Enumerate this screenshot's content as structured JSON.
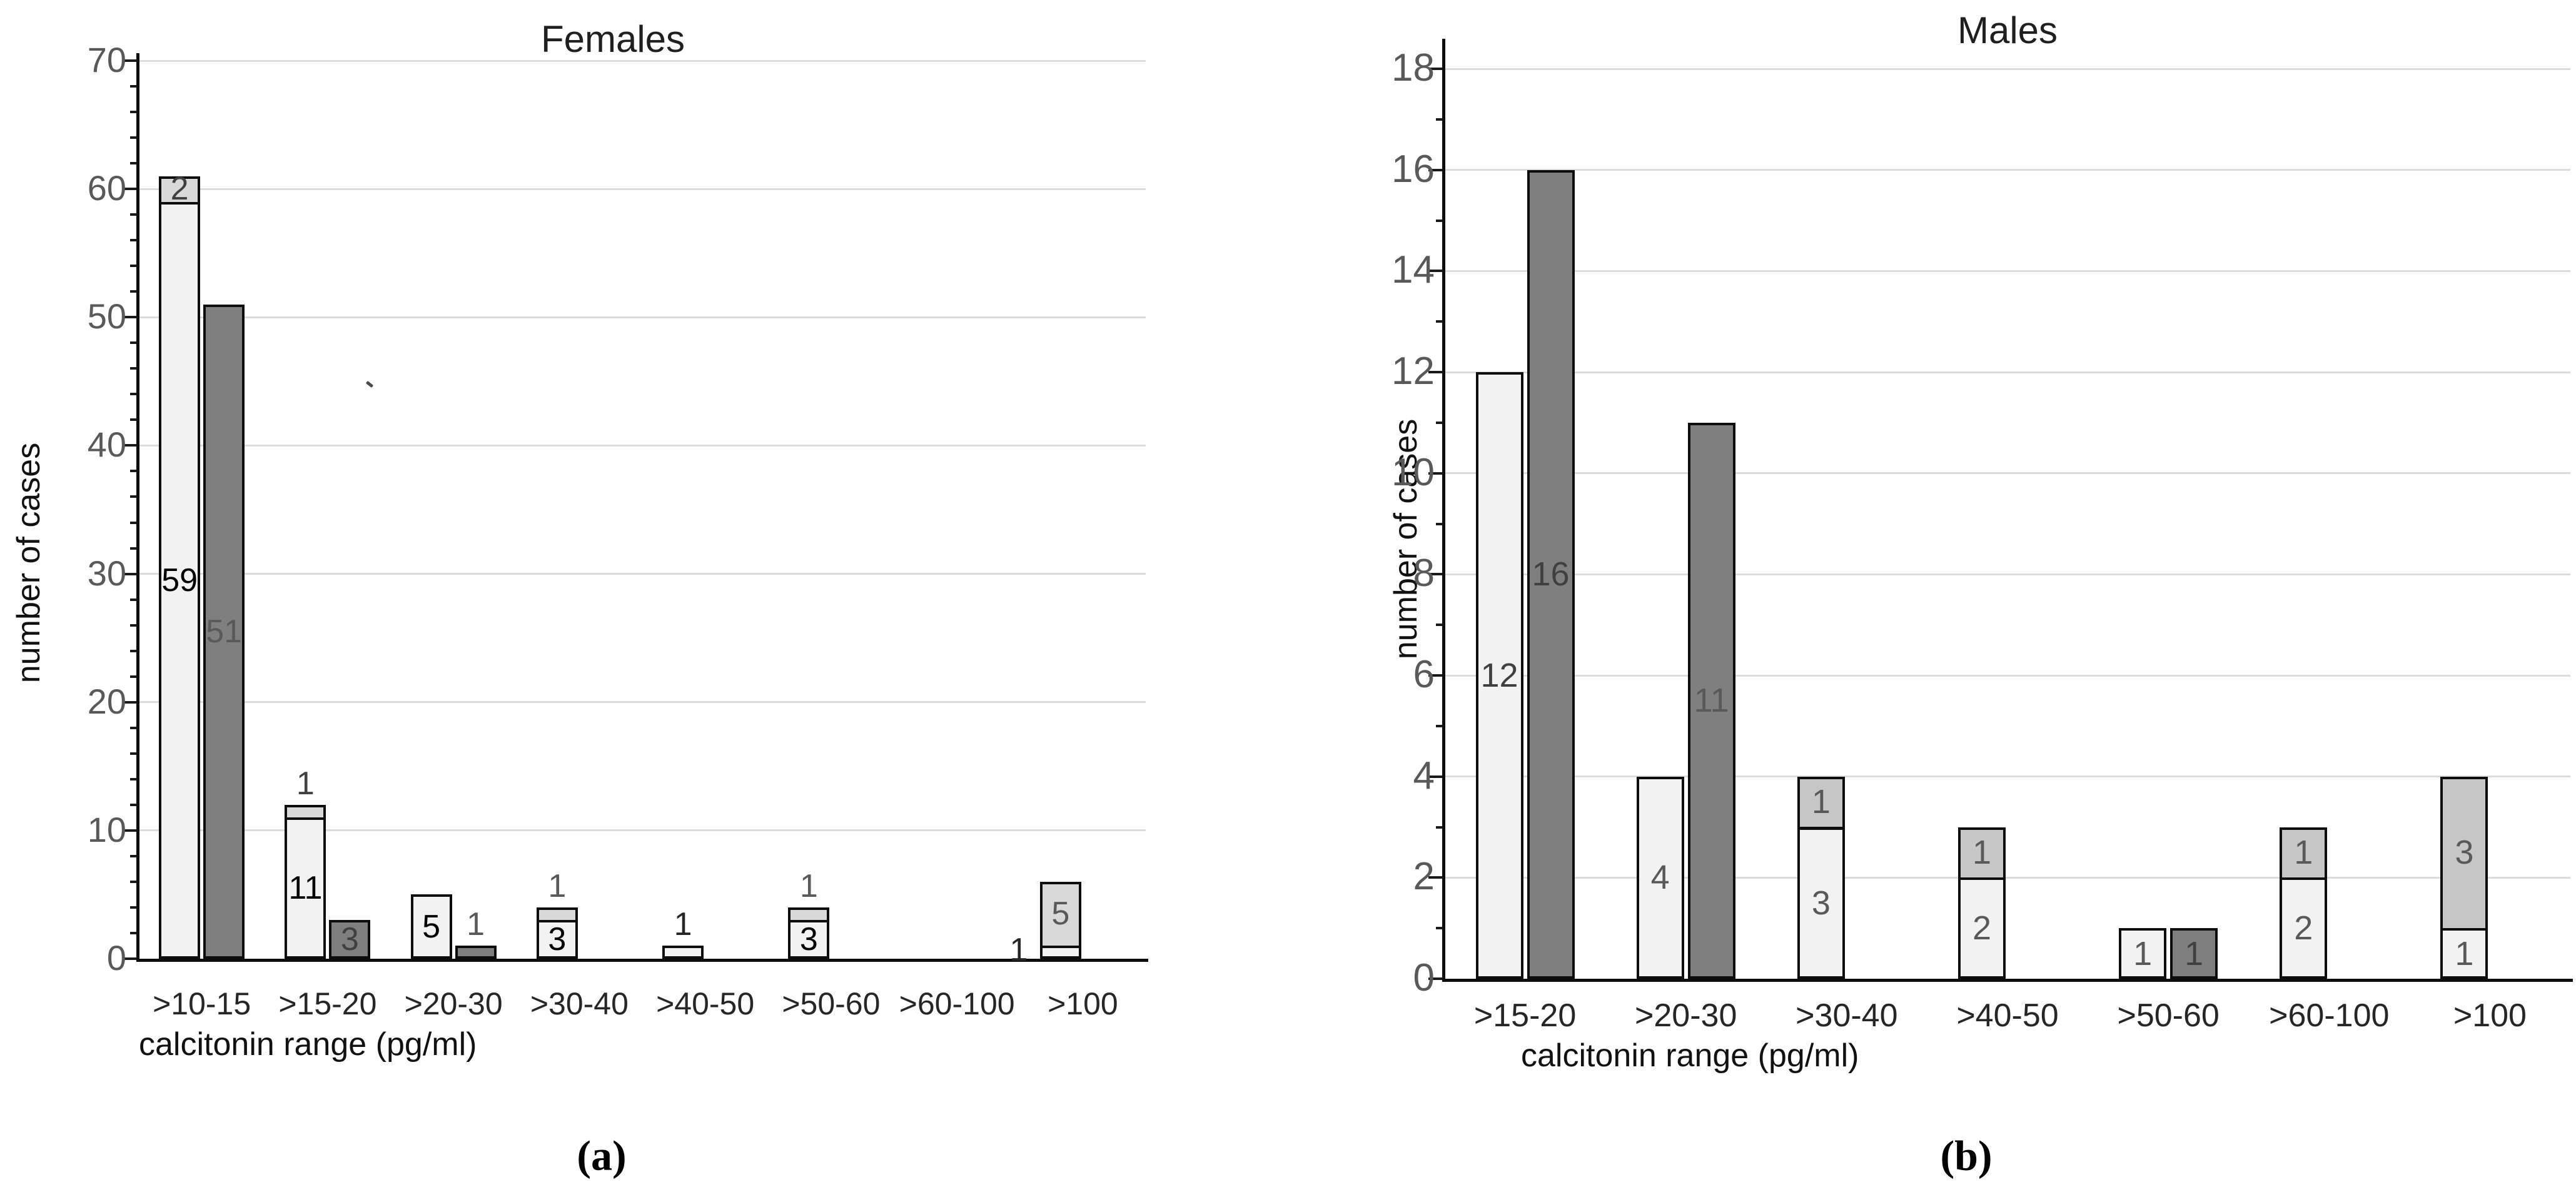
{
  "figure": {
    "captions": {
      "a": "(a)",
      "b": "(b)"
    }
  },
  "chart_data": [
    {
      "type": "bar",
      "panel": "a",
      "title": "Females",
      "xlabel": "calcitonin range (pg/ml)",
      "ylabel": "number of cases",
      "ylim": [
        0,
        70
      ],
      "ytick_step": 10,
      "yminor_step": 2,
      "grid": true,
      "legend": "none",
      "grid_color": "#dcdcdc",
      "tick_label_color": "#595959",
      "axis_color": "#0d0d0d",
      "categories": [
        ">10-15",
        ">15-20",
        ">20-30",
        ">30-40",
        ">40-50",
        ">50-60",
        ">60-100",
        ">100"
      ],
      "series": [
        {
          "name": "light-stack-base",
          "color": "#f2f2f2",
          "values": [
            59,
            11,
            5,
            3,
            1,
            3,
            0,
            1
          ]
        },
        {
          "name": "light-stack-top",
          "color": "#d9d9d9",
          "values": [
            2,
            1,
            0,
            1,
            0,
            1,
            0,
            5
          ]
        },
        {
          "name": "dark",
          "color": "#7f7f7f",
          "values": [
            51,
            3,
            1,
            0,
            0,
            0,
            0,
            0
          ]
        }
      ],
      "value_labels": [
        {
          "cat": 0,
          "target": "base",
          "placement": "inside",
          "text": "59",
          "color": "#000000"
        },
        {
          "cat": 0,
          "target": "top",
          "placement": "inside",
          "text": "2",
          "color": "#404040"
        },
        {
          "cat": 0,
          "target": "dark",
          "placement": "inside",
          "text": "51",
          "color": "#595959"
        },
        {
          "cat": 1,
          "target": "base",
          "placement": "inside",
          "text": "11",
          "color": "#000000"
        },
        {
          "cat": 1,
          "target": "stack",
          "placement": "above",
          "text": "1",
          "color": "#404040"
        },
        {
          "cat": 1,
          "target": "dark",
          "placement": "inside",
          "text": "3",
          "color": "#404040"
        },
        {
          "cat": 2,
          "target": "base",
          "placement": "inside",
          "text": "5",
          "color": "#000000"
        },
        {
          "cat": 2,
          "target": "dark",
          "placement": "above",
          "text": "1",
          "color": "#595959"
        },
        {
          "cat": 3,
          "target": "base",
          "placement": "inside",
          "text": "3",
          "color": "#000000"
        },
        {
          "cat": 3,
          "target": "stack",
          "placement": "above",
          "text": "1",
          "color": "#595959"
        },
        {
          "cat": 4,
          "target": "stack",
          "placement": "above",
          "text": "1",
          "color": "#262626"
        },
        {
          "cat": 5,
          "target": "base",
          "placement": "inside",
          "text": "3",
          "color": "#000000"
        },
        {
          "cat": 5,
          "target": "stack",
          "placement": "above",
          "text": "1",
          "color": "#595959"
        },
        {
          "cat": 7,
          "target": "base",
          "placement": "outside-left",
          "text": "1",
          "color": "#262626"
        },
        {
          "cat": 7,
          "target": "top",
          "placement": "inside",
          "text": "5",
          "color": "#595959"
        }
      ]
    },
    {
      "type": "bar",
      "panel": "b",
      "title": "Males",
      "xlabel": "calcitonin range (pg/ml)",
      "ylabel": "number of cases",
      "ylim": [
        0,
        18
      ],
      "ytick_step": 2,
      "yminor_step": 1,
      "grid": true,
      "legend": "none",
      "grid_color": "#dcdcdc",
      "tick_label_color": "#595959",
      "axis_color": "#0d0d0d",
      "categories": [
        ">15-20",
        ">20-30",
        ">30-40",
        ">40-50",
        ">50-60",
        ">60-100",
        ">100"
      ],
      "series": [
        {
          "name": "light-stack-base",
          "color": "#f2f2f2",
          "values": [
            12,
            4,
            3,
            2,
            1,
            2,
            1
          ]
        },
        {
          "name": "light-stack-top",
          "color": "#c6c6c6",
          "values": [
            0,
            0,
            1,
            1,
            0,
            1,
            3
          ]
        },
        {
          "name": "dark",
          "color": "#7f7f7f",
          "values": [
            16,
            11,
            0,
            0,
            1,
            0,
            0
          ]
        }
      ],
      "value_labels": [
        {
          "cat": 0,
          "target": "base",
          "placement": "inside",
          "text": "12",
          "color": "#404040"
        },
        {
          "cat": 0,
          "target": "dark",
          "placement": "inside",
          "text": "16",
          "color": "#404040"
        },
        {
          "cat": 1,
          "target": "base",
          "placement": "inside",
          "text": "4",
          "color": "#595959"
        },
        {
          "cat": 1,
          "target": "dark",
          "placement": "inside",
          "text": "11",
          "color": "#595959"
        },
        {
          "cat": 2,
          "target": "base",
          "placement": "inside",
          "text": "3",
          "color": "#595959"
        },
        {
          "cat": 2,
          "target": "top",
          "placement": "inside",
          "text": "1",
          "color": "#595959"
        },
        {
          "cat": 3,
          "target": "base",
          "placement": "inside",
          "text": "2",
          "color": "#595959"
        },
        {
          "cat": 3,
          "target": "top",
          "placement": "inside",
          "text": "1",
          "color": "#595959"
        },
        {
          "cat": 4,
          "target": "base",
          "placement": "inside",
          "text": "1",
          "color": "#595959"
        },
        {
          "cat": 4,
          "target": "dark",
          "placement": "inside",
          "text": "1",
          "color": "#404040"
        },
        {
          "cat": 5,
          "target": "base",
          "placement": "inside",
          "text": "2",
          "color": "#595959"
        },
        {
          "cat": 5,
          "target": "top",
          "placement": "inside",
          "text": "1",
          "color": "#595959"
        },
        {
          "cat": 6,
          "target": "base",
          "placement": "inside",
          "text": "1",
          "color": "#595959"
        },
        {
          "cat": 6,
          "target": "top",
          "placement": "inside",
          "text": "3",
          "color": "#595959"
        }
      ]
    }
  ]
}
